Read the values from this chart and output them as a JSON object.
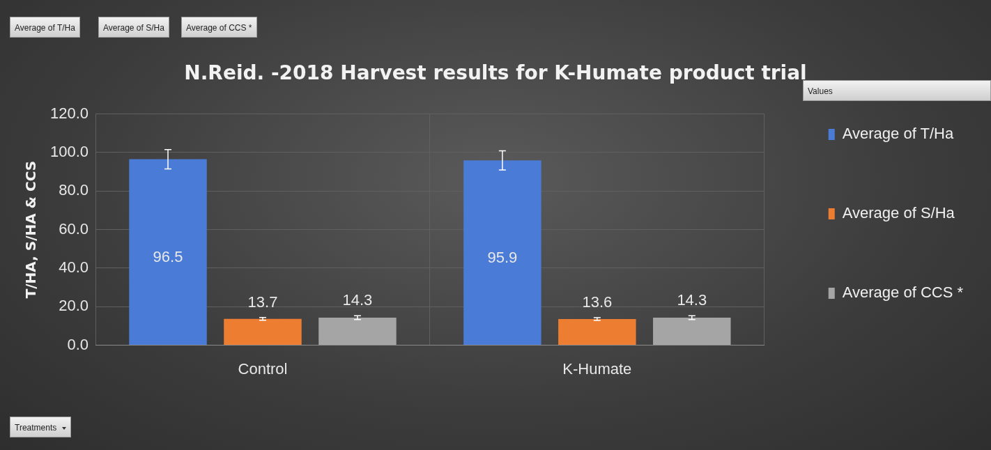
{
  "chart_data": {
    "type": "bar",
    "title": "N.Reid. -2018 Harvest results for K-Humate product trial",
    "ylabel": "T/HA, S/HA & CCS",
    "categories": [
      "Control",
      "K-Humate"
    ],
    "series": [
      {
        "name": "Average of T/Ha",
        "color": "#4a7bd6",
        "values": [
          96.5,
          95.9
        ],
        "errors": [
          5,
          5
        ]
      },
      {
        "name": "Average of S/Ha",
        "color": "#ed7d31",
        "values": [
          13.7,
          13.6
        ],
        "errors": [
          0.7,
          0.7
        ]
      },
      {
        "name": "Average of CCS *",
        "color": "#a5a5a5",
        "values": [
          14.3,
          14.3
        ],
        "errors": [
          1,
          1
        ]
      }
    ],
    "ylim": [
      0,
      120
    ],
    "yticks": [
      {
        "value": 0,
        "label": "0.0"
      },
      {
        "value": 20,
        "label": "20.0"
      },
      {
        "value": 40,
        "label": "40.0"
      },
      {
        "value": 60,
        "label": "60.0"
      },
      {
        "value": 80,
        "label": "80.0"
      },
      {
        "value": 100,
        "label": "100.0"
      },
      {
        "value": 120,
        "label": "120.0"
      }
    ],
    "grid": true,
    "legend": "right",
    "data_labels": true,
    "annotations": [
      "Average of T/Ha",
      "Average of S/Ha",
      "Average of CCS *",
      "Values",
      "Treatments"
    ]
  }
}
